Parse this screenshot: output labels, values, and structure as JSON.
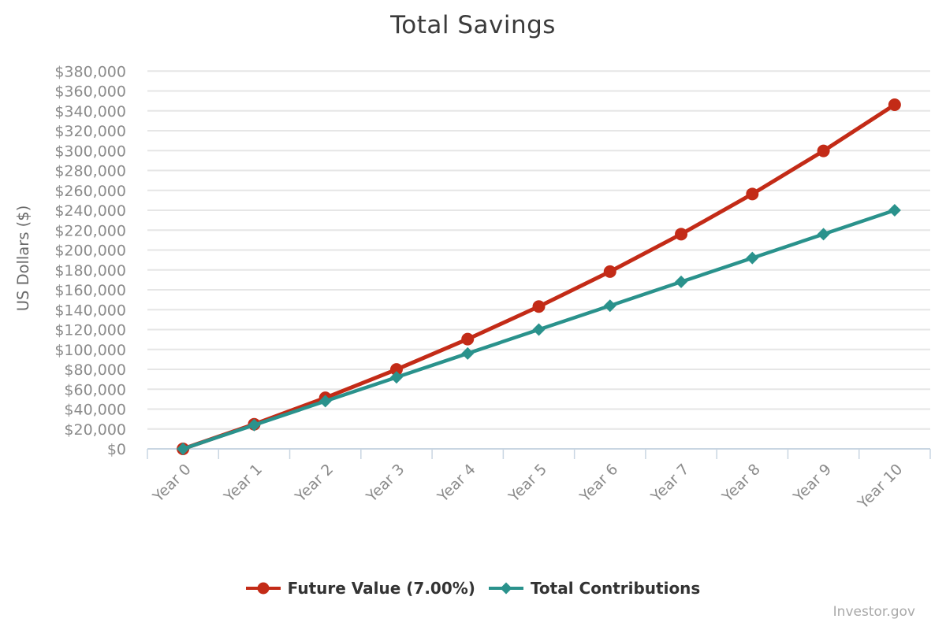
{
  "chart_data": {
    "type": "line",
    "title": "Total Savings",
    "ylabel": "US Dollars ($)",
    "xlabel": "",
    "categories": [
      "Year 0",
      "Year 1",
      "Year 2",
      "Year 3",
      "Year 4",
      "Year 5",
      "Year 6",
      "Year 7",
      "Year 8",
      "Year 9",
      "Year 10"
    ],
    "series": [
      {
        "name": "Future Value (7.00%)",
        "color": "#c32b17",
        "marker": "circle",
        "values": [
          0,
          24785,
          51362,
          79860,
          110419,
          143186,
          178322,
          215998,
          256398,
          299718,
          346170
        ]
      },
      {
        "name": "Total Contributions",
        "color": "#2a928c",
        "marker": "diamond",
        "values": [
          0,
          24000,
          48000,
          72000,
          96000,
          120000,
          144000,
          168000,
          192000,
          216000,
          240000
        ]
      }
    ],
    "ylim": [
      0,
      380000
    ],
    "ytick_step": 20000,
    "ytick_prefix": "$",
    "grid": true,
    "legend_position": "bottom",
    "x_label_rotation": -45
  },
  "colors": {
    "grid_line": "#e6e6e6",
    "axis_line": "#c9d6e2",
    "tick_label": "#8b8b8b",
    "axis_title": "#6a6a6a",
    "title_text": "#3b3b3b",
    "legend_text": "#333333",
    "watermark_text": "#a9a9a9"
  },
  "footer": {
    "watermark": "Investor.gov"
  }
}
